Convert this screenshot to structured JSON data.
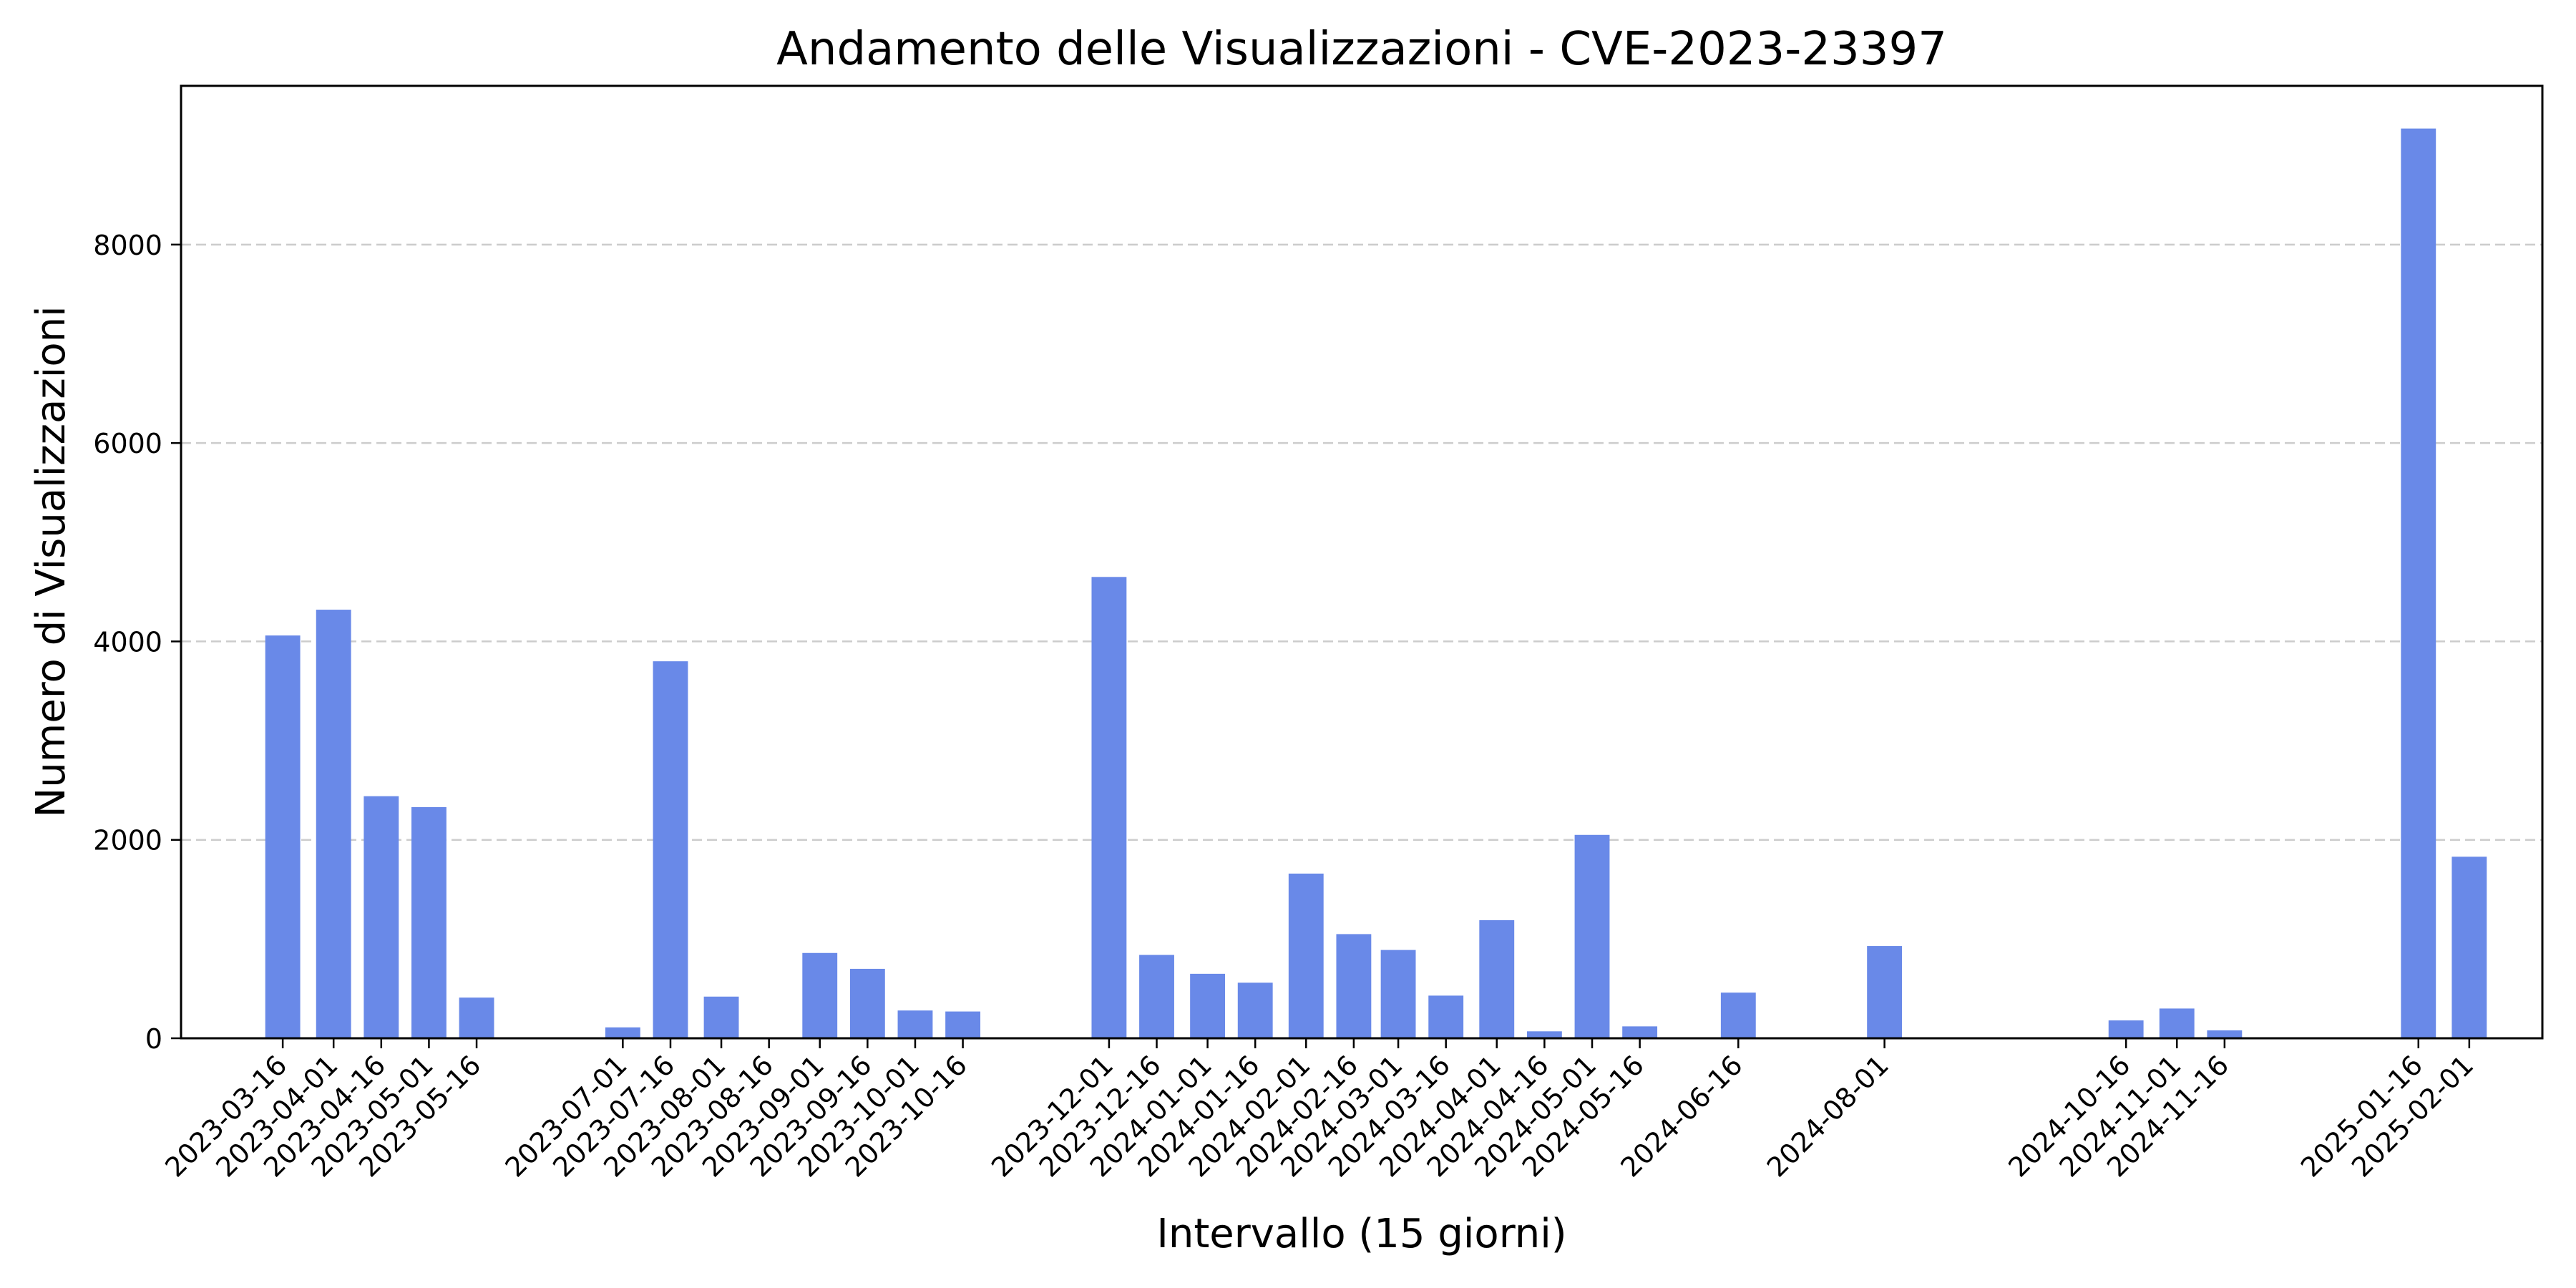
{
  "chart_data": {
    "type": "bar",
    "title": "Andamento delle Visualizzazioni - CVE-2023-23397",
    "xlabel": "Intervallo (15 giorni)",
    "ylabel": "Numero di Visualizzazioni",
    "ylim": [
      0,
      9600
    ],
    "yticks": [
      0,
      2000,
      4000,
      6000,
      8000
    ],
    "xlim": [
      "2023-02-12",
      "2025-02-24"
    ],
    "grid": {
      "y": true,
      "x": false,
      "style": "dashed"
    },
    "bar_color": "#6989e8",
    "grid_color": "#cccccc",
    "x_tick_labels": [
      "2023-03-16",
      "2023-04-01",
      "2023-04-16",
      "2023-05-01",
      "2023-05-16",
      "2023-07-01",
      "2023-07-16",
      "2023-08-01",
      "2023-08-16",
      "2023-09-01",
      "2023-09-16",
      "2023-10-01",
      "2023-10-16",
      "2023-12-01",
      "2023-12-16",
      "2024-01-01",
      "2024-01-16",
      "2024-02-01",
      "2024-02-16",
      "2024-03-01",
      "2024-03-16",
      "2024-04-01",
      "2024-04-16",
      "2024-05-01",
      "2024-05-16",
      "2024-06-16",
      "2024-08-01",
      "2024-10-16",
      "2024-11-01",
      "2024-11-16",
      "2025-01-16",
      "2025-02-01"
    ],
    "bars": [
      {
        "x": "2023-03-16",
        "y": 4060
      },
      {
        "x": "2023-04-01",
        "y": 4320
      },
      {
        "x": "2023-04-16",
        "y": 2440
      },
      {
        "x": "2023-05-01",
        "y": 2330
      },
      {
        "x": "2023-05-16",
        "y": 410
      },
      {
        "x": "2023-07-01",
        "y": 110
      },
      {
        "x": "2023-07-16",
        "y": 3800
      },
      {
        "x": "2023-08-01",
        "y": 420
      },
      {
        "x": "2023-08-16",
        "y": 0
      },
      {
        "x": "2023-09-01",
        "y": 860
      },
      {
        "x": "2023-09-16",
        "y": 700
      },
      {
        "x": "2023-10-01",
        "y": 280
      },
      {
        "x": "2023-10-16",
        "y": 270
      },
      {
        "x": "2023-12-01",
        "y": 4650
      },
      {
        "x": "2023-12-16",
        "y": 840
      },
      {
        "x": "2024-01-01",
        "y": 650
      },
      {
        "x": "2024-01-16",
        "y": 560
      },
      {
        "x": "2024-02-01",
        "y": 1660
      },
      {
        "x": "2024-02-16",
        "y": 1050
      },
      {
        "x": "2024-03-01",
        "y": 890
      },
      {
        "x": "2024-03-16",
        "y": 430
      },
      {
        "x": "2024-04-01",
        "y": 1190
      },
      {
        "x": "2024-04-16",
        "y": 70
      },
      {
        "x": "2024-05-01",
        "y": 2050
      },
      {
        "x": "2024-05-16",
        "y": 120
      },
      {
        "x": "2024-06-16",
        "y": 460
      },
      {
        "x": "2024-08-01",
        "y": 930
      },
      {
        "x": "2024-10-16",
        "y": 180
      },
      {
        "x": "2024-11-01",
        "y": 300
      },
      {
        "x": "2024-11-16",
        "y": 80
      },
      {
        "x": "2025-01-16",
        "y": 9170
      },
      {
        "x": "2025-02-01",
        "y": 1830
      }
    ]
  }
}
